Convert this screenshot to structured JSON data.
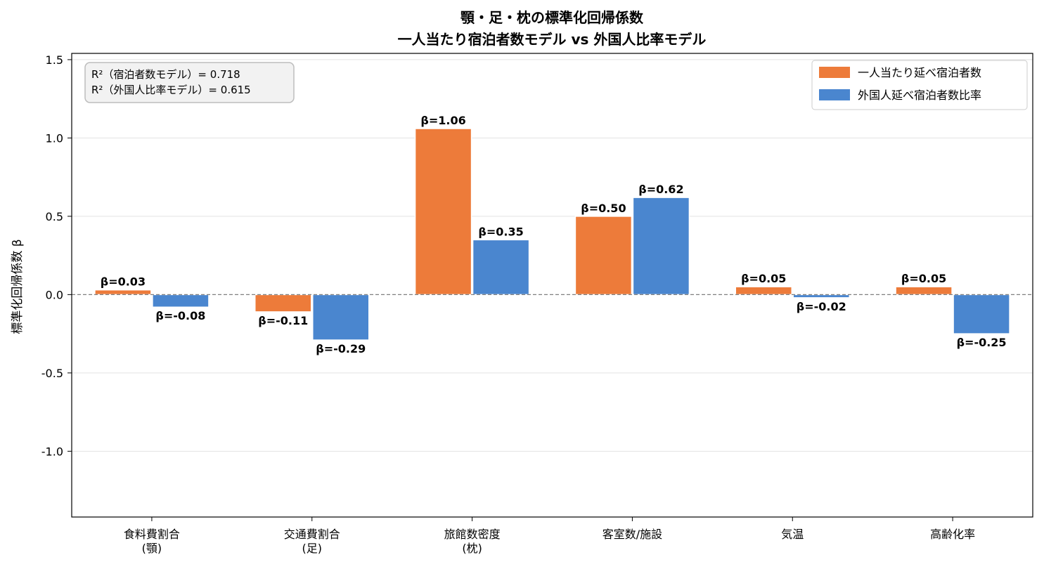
{
  "chart_data": {
    "type": "bar",
    "title_line1": "顎・足・枕の標準化回帰係数",
    "title_line2": "一人当たり宿泊者数モデル vs 外国人比率モデル",
    "ylabel": "標準化回帰係数 β",
    "xlabel": "",
    "ylim": [
      -1.42,
      1.54
    ],
    "yticks": [
      -1.0,
      -0.5,
      0.0,
      0.5,
      1.0,
      1.5
    ],
    "ytick_labels": [
      "-1.0",
      "-0.5",
      "0.0",
      "0.5",
      "1.0",
      "1.5"
    ],
    "grid": "horizontal",
    "zero_line": "dashed",
    "categories": [
      [
        "食料費割合",
        "(顎)"
      ],
      [
        "交通費割合",
        "(足)"
      ],
      [
        "旅館数密度",
        "(枕)"
      ],
      [
        "客室数/施設"
      ],
      [
        "気温"
      ],
      [
        "高齢化率"
      ]
    ],
    "series": [
      {
        "name": "一人当たり延べ宿泊者数",
        "color": "#ED7B3A",
        "values": [
          0.03,
          -0.11,
          1.06,
          0.5,
          0.05,
          0.05
        ],
        "labels": [
          "β=0.03",
          "β=-0.11",
          "β=1.06",
          "β=0.50",
          "β=0.05",
          "β=0.05"
        ]
      },
      {
        "name": "外国人延べ宿泊者数比率",
        "color": "#4A86CF",
        "values": [
          -0.08,
          -0.29,
          0.35,
          0.62,
          -0.02,
          -0.25
        ],
        "labels": [
          "β=-0.08",
          "β=-0.29",
          "β=0.35",
          "β=0.62",
          "β=-0.02",
          "β=-0.25"
        ]
      }
    ],
    "legend_position": "top-right",
    "annotation_box": {
      "position": "top-left",
      "lines": [
        "R²（宿泊者数モデル）= 0.718",
        "R²（外国人比率モデル）= 0.615"
      ]
    }
  }
}
